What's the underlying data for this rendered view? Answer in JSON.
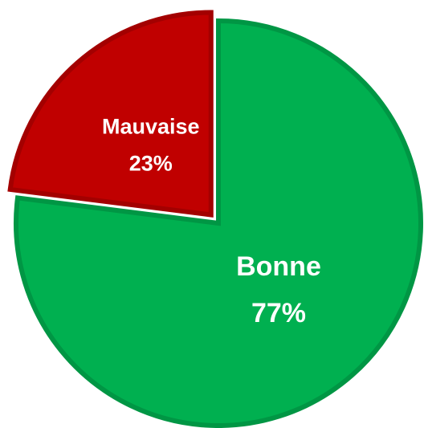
{
  "chart_data": {
    "type": "pie",
    "categories": [
      "Bonne",
      "Mauvaise"
    ],
    "values": [
      77,
      23
    ],
    "value_labels": [
      "77%",
      "23%"
    ],
    "colors": [
      "#00b050",
      "#c00000"
    ]
  }
}
